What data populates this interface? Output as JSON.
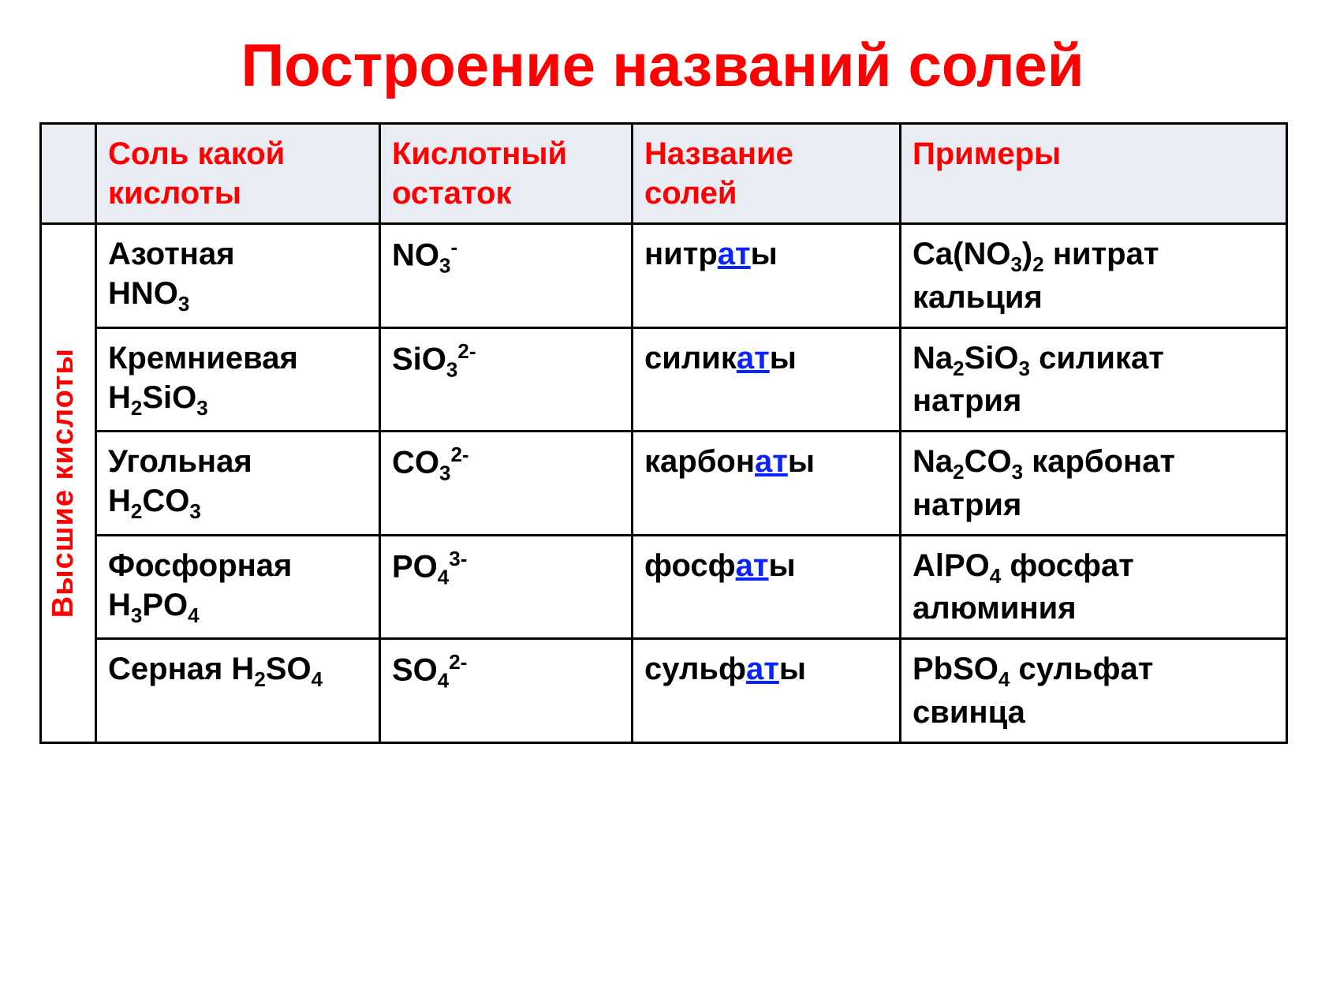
{
  "title": "Построение названий солей",
  "title_color": "#ff0000",
  "header_bg": "#e9ecf3",
  "header_color": "#ff0000",
  "hl_color": "#0b24fb",
  "side_label": "Высшие кислоты",
  "side_color": "#ff0000",
  "columns": {
    "c1": "Соль какой кислоты",
    "c2": "Кислотный остаток",
    "c3": "Название солей",
    "c4": "Примеры"
  },
  "rows": [
    {
      "acid_name": "Азотная",
      "acid_formula_html": "HNO<sub>3</sub>",
      "residue_html": "NO<sub>3</sub><sup>-</sup>",
      "salt_prefix": "нитр",
      "salt_hl": "ат",
      "salt_suffix": "ы",
      "example_formula_html": "Ca(NO<sub>3</sub>)<sub>2</sub>",
      "example_name": " нитрат кальция"
    },
    {
      "acid_name": "Кремниевая",
      "acid_formula_html": "H<sub>2</sub>SiO<sub>3</sub>",
      "residue_html": "SiO<sub>3</sub><sup>2-</sup>",
      "salt_prefix": "силик",
      "salt_hl": "ат",
      "salt_suffix": "ы",
      "example_formula_html": "Na<sub>2</sub>SiO<sub>3</sub>",
      "example_name": " силикат натрия"
    },
    {
      "acid_name": "Угольная",
      "acid_formula_html": "H<sub>2</sub>CO<sub>3</sub>",
      "residue_html": "CO<sub>3</sub><sup>2-</sup>",
      "salt_prefix": "карбон",
      "salt_hl": "ат",
      "salt_suffix": "ы",
      "example_formula_html": "Na<sub>2</sub>CO<sub>3</sub>",
      "example_name": " карбонат натрия"
    },
    {
      "acid_name": "Фосфорная",
      "acid_formula_html": "H<sub>3</sub>PO<sub>4</sub>",
      "residue_html": "PO<sub>4</sub><sup>3-</sup>",
      "salt_prefix": "фосф",
      "salt_hl": "ат",
      "salt_suffix": "ы",
      "example_formula_html": "AlPO<sub>4</sub>",
      "example_name": " фосфат алюминия"
    },
    {
      "acid_name": "Серная ",
      "acid_formula_html": "H<sub>2</sub>SO<sub>4</sub>",
      "residue_html": "SO<sub>4</sub><sup>2-</sup>",
      "salt_prefix": "сульф",
      "salt_hl": "ат",
      "salt_suffix": "ы",
      "example_formula_html": "PbSO<sub>4</sub>",
      "example_name": " сульфат свинца"
    }
  ]
}
